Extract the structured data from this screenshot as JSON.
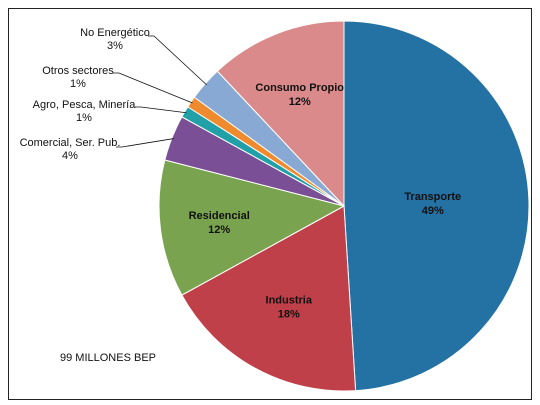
{
  "chart_data": {
    "type": "pie",
    "total_label": "99 MILLONES BEP",
    "slices": [
      {
        "name": "Transporte",
        "pct_label": "49%",
        "value": 49,
        "color": "#2471a3"
      },
      {
        "name": "Industria",
        "pct_label": "18%",
        "value": 18,
        "color": "#c0404a"
      },
      {
        "name": "Residencial",
        "pct_label": "12%",
        "value": 12,
        "color": "#7aa34f"
      },
      {
        "name": "Comercial, Ser. Pub.",
        "pct_label": "4%",
        "value": 4,
        "color": "#7a4f96"
      },
      {
        "name": "Agro, Pesca, Minería",
        "pct_label": "1%",
        "value": 1,
        "color": "#21a0a8"
      },
      {
        "name": "Otros sectores",
        "pct_label": "1%",
        "value": 1,
        "color": "#ef8a2f"
      },
      {
        "name": "No Energético",
        "pct_label": "3%",
        "value": 3,
        "color": "#87a9d3"
      },
      {
        "name": "Consumo Propio",
        "pct_label": "12%",
        "value": 12,
        "color": "#da8a8b"
      }
    ]
  }
}
